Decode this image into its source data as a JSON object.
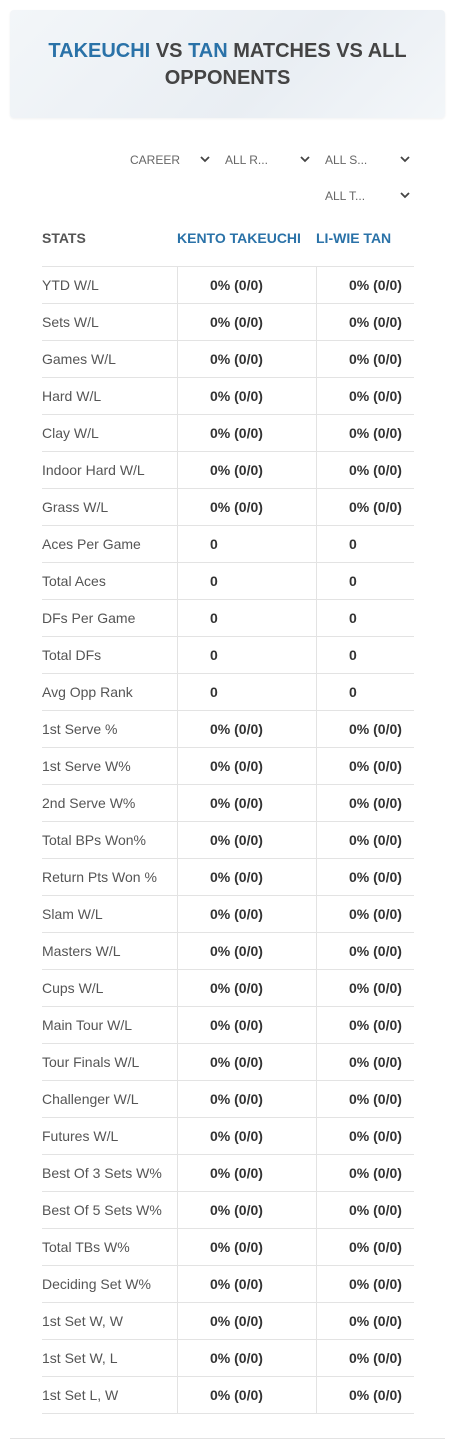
{
  "header": {
    "title": {
      "player1": "TAKEUCHI",
      "vs": "VS",
      "player2": "TAN",
      "rest": "MATCHES VS ALL OPPONENTS"
    }
  },
  "filters": [
    "CAREER",
    "ALL R...",
    "ALL S...",
    "ALL T..."
  ],
  "table": {
    "columns": [
      "STATS",
      "KENTO TAKEUCHI",
      "LI-WIE TAN"
    ],
    "rows": [
      [
        "YTD W/L",
        "0% (0/0)",
        "0% (0/0)"
      ],
      [
        "Sets W/L",
        "0% (0/0)",
        "0% (0/0)"
      ],
      [
        "Games W/L",
        "0% (0/0)",
        "0% (0/0)"
      ],
      [
        "Hard W/L",
        "0% (0/0)",
        "0% (0/0)"
      ],
      [
        "Clay W/L",
        "0% (0/0)",
        "0% (0/0)"
      ],
      [
        "Indoor Hard W/L",
        "0% (0/0)",
        "0% (0/0)"
      ],
      [
        "Grass W/L",
        "0% (0/0)",
        "0% (0/0)"
      ],
      [
        "Aces Per Game",
        "0",
        "0"
      ],
      [
        "Total Aces",
        "0",
        "0"
      ],
      [
        "DFs Per Game",
        "0",
        "0"
      ],
      [
        "Total DFs",
        "0",
        "0"
      ],
      [
        "Avg Opp Rank",
        "0",
        "0"
      ],
      [
        "1st Serve %",
        "0% (0/0)",
        "0% (0/0)"
      ],
      [
        "1st Serve W%",
        "0% (0/0)",
        "0% (0/0)"
      ],
      [
        "2nd Serve W%",
        "0% (0/0)",
        "0% (0/0)"
      ],
      [
        "Total BPs Won%",
        "0% (0/0)",
        "0% (0/0)"
      ],
      [
        "Return Pts Won %",
        "0% (0/0)",
        "0% (0/0)"
      ],
      [
        "Slam W/L",
        "0% (0/0)",
        "0% (0/0)"
      ],
      [
        "Masters W/L",
        "0% (0/0)",
        "0% (0/0)"
      ],
      [
        "Cups W/L",
        "0% (0/0)",
        "0% (0/0)"
      ],
      [
        "Main Tour W/L",
        "0% (0/0)",
        "0% (0/0)"
      ],
      [
        "Tour Finals W/L",
        "0% (0/0)",
        "0% (0/0)"
      ],
      [
        "Challenger W/L",
        "0% (0/0)",
        "0% (0/0)"
      ],
      [
        "Futures W/L",
        "0% (0/0)",
        "0% (0/0)"
      ],
      [
        "Best Of 3 Sets W%",
        "0% (0/0)",
        "0% (0/0)"
      ],
      [
        "Best Of 5 Sets W%",
        "0% (0/0)",
        "0% (0/0)"
      ],
      [
        "Total TBs W%",
        "0% (0/0)",
        "0% (0/0)"
      ],
      [
        "Deciding Set W%",
        "0% (0/0)",
        "0% (0/0)"
      ],
      [
        "1st Set W, W",
        "0% (0/0)",
        "0% (0/0)"
      ],
      [
        "1st Set W, L",
        "0% (0/0)",
        "0% (0/0)"
      ],
      [
        "1st Set L, W",
        "0% (0/0)",
        "0% (0/0)"
      ]
    ]
  }
}
